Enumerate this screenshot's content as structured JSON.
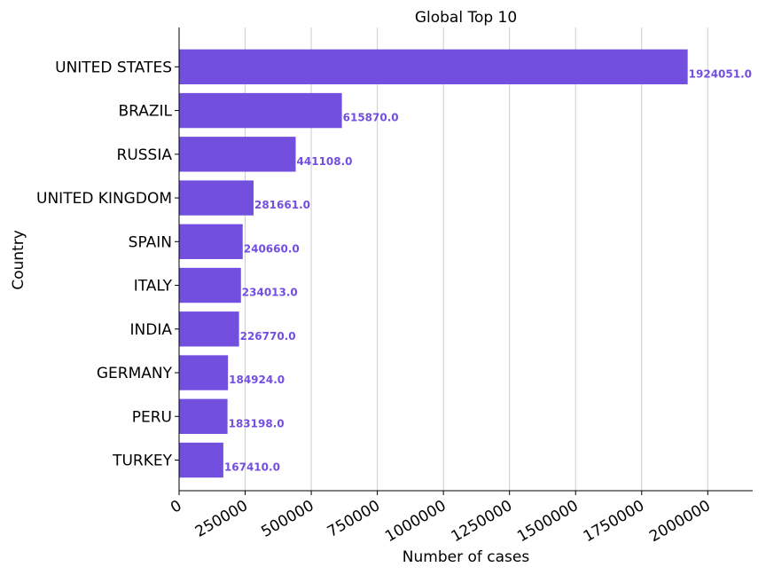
{
  "chart_data": {
    "type": "bar",
    "orientation": "horizontal",
    "title": "Global Top 10",
    "xlabel": "Number of cases",
    "ylabel": "Country",
    "categories": [
      "UNITED STATES",
      "BRAZIL",
      "RUSSIA",
      "UNITED KINGDOM",
      "SPAIN",
      "ITALY",
      "INDIA",
      "GERMANY",
      "PERU",
      "TURKEY"
    ],
    "values": [
      1924051.0,
      615870.0,
      441108.0,
      281661.0,
      240660.0,
      234013.0,
      226770.0,
      184924.0,
      183198.0,
      167410.0
    ],
    "data_labels": [
      "1924051.0",
      "615870.0",
      "441108.0",
      "281661.0",
      "240660.0",
      "234013.0",
      "226770.0",
      "184924.0",
      "183198.0",
      "167410.0"
    ],
    "xticks": [
      0,
      250000,
      500000,
      750000,
      1000000,
      1250000,
      1500000,
      1750000,
      2000000
    ],
    "xtick_labels": [
      "0",
      "250000",
      "500000",
      "750000",
      "1000000",
      "1250000",
      "1500000",
      "1750000",
      "2000000"
    ],
    "xlim": [
      0,
      2170000
    ],
    "grid": "vertical",
    "bar_color": "#734fe0",
    "label_color": "#734fe0"
  }
}
